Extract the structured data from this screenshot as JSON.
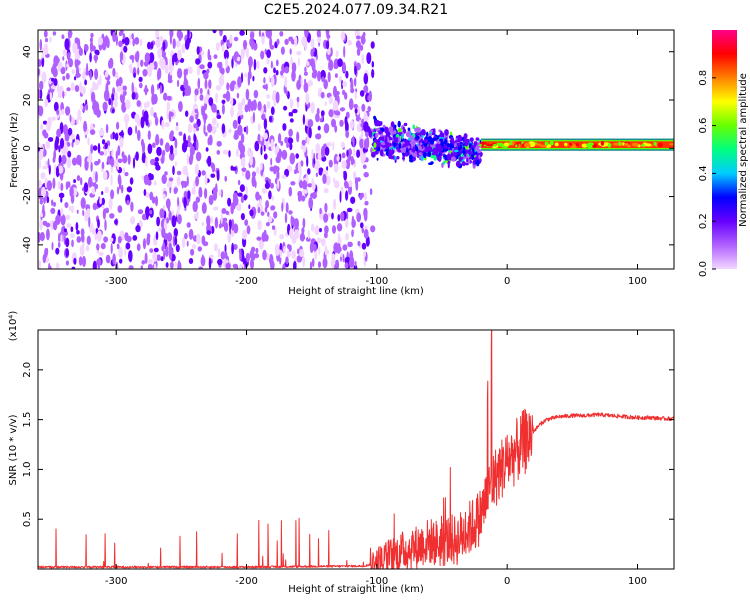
{
  "title": "C2E5.2024.077.09.34.R21",
  "chart_data": [
    {
      "type": "heatmap",
      "xlabel": "Height of straight line (km)",
      "ylabel": "Frequency (Hz)",
      "xlim": [
        -360,
        128
      ],
      "ylim": [
        -50,
        49
      ],
      "x_ticks": [
        -300,
        -200,
        -100,
        0,
        100
      ],
      "y_ticks": [
        -40,
        -20,
        0,
        20,
        40
      ],
      "colorbar": {
        "label": "Normalized spectral amplitude",
        "range": [
          0.0,
          1.0
        ],
        "ticks": [
          0.0,
          0.2,
          0.4,
          0.6,
          0.8
        ],
        "colormap": [
          "#f2d6ff",
          "#b060ff",
          "#6600ff",
          "#0000ff",
          "#00ccff",
          "#00ff80",
          "#66ff00",
          "#ffff00",
          "#ff8000",
          "#ff0000",
          "#ff0088"
        ]
      },
      "regions": [
        {
          "x": [
            -360,
            -103
          ],
          "freq_band": [
            -50,
            49
          ],
          "amplitude": 0.15
        },
        {
          "x": [
            -103,
            -20
          ],
          "freq_band": [
            -20,
            12
          ],
          "amplitude": 0.25
        },
        {
          "x": [
            -20,
            128
          ],
          "freq_band": [
            0,
            3
          ],
          "amplitude": 0.85
        }
      ]
    },
    {
      "type": "line",
      "xlabel": "Height of straight line (km)",
      "ylabel": "SNR (10 * v/v)",
      "y_multiplier": "(x10⁴)",
      "xlim": [
        -360,
        128
      ],
      "ylim": [
        0,
        2.4
      ],
      "x_ticks": [
        -300,
        -200,
        -100,
        0,
        100
      ],
      "y_ticks": [
        0.5,
        1.0,
        1.5,
        2.0
      ],
      "y_tick_labels": [
        "0.5",
        "1.0",
        "1.5",
        "2.0"
      ],
      "series": [
        {
          "color": "#f03030",
          "x": [
            -360,
            -300,
            -200,
            -110,
            -100,
            -90,
            -80,
            -70,
            -60,
            -50,
            -45,
            -40,
            -35,
            -30,
            -25,
            -20,
            -15,
            -10,
            -5,
            0,
            5,
            10,
            15,
            20,
            25,
            30,
            40,
            50,
            60,
            70,
            80,
            90,
            100,
            110,
            120,
            128
          ],
          "y": [
            0.02,
            0.02,
            0.02,
            0.03,
            0.06,
            0.12,
            0.18,
            0.22,
            0.28,
            0.25,
            0.3,
            0.28,
            0.33,
            0.4,
            0.45,
            0.55,
            0.75,
            0.9,
            1.0,
            1.08,
            1.15,
            1.22,
            1.3,
            1.38,
            1.45,
            1.5,
            1.53,
            1.54,
            1.54,
            1.55,
            1.54,
            1.53,
            1.52,
            1.52,
            1.51,
            1.51
          ]
        }
      ]
    }
  ]
}
